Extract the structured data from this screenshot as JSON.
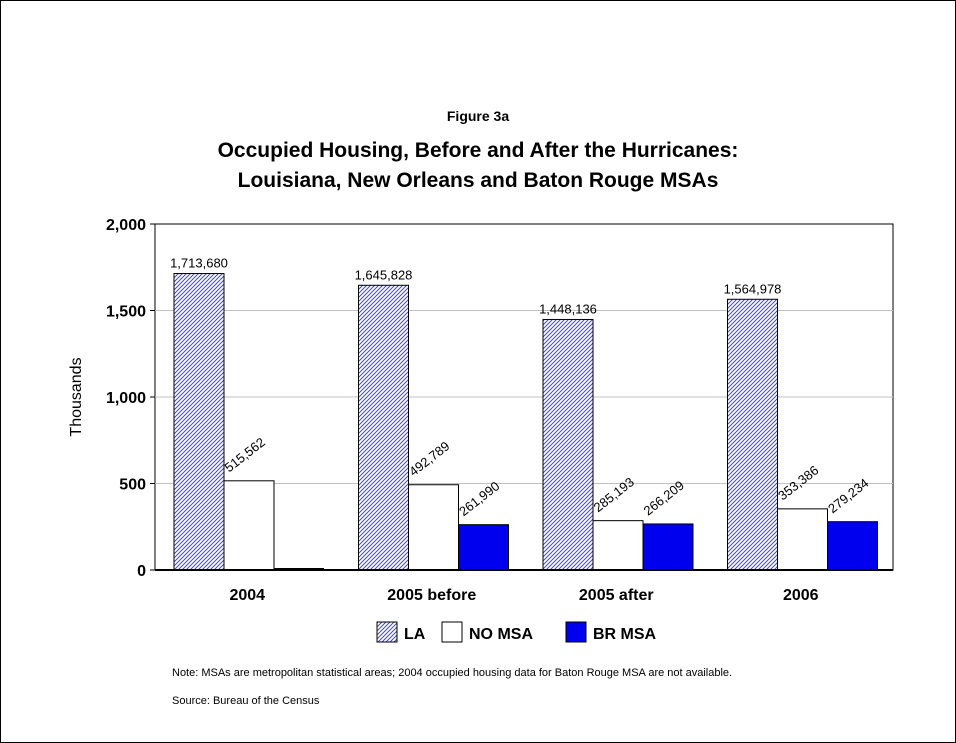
{
  "figure_label": "Figure 3a",
  "title_line1": "Occupied Housing, Before and After the Hurricanes:",
  "title_line2": "Louisiana, New Orleans and Baton Rouge MSAs",
  "note": "Note: MSAs are metropolitan statistical areas; 2004 occupied housing data for Baton Rouge MSA are not available.",
  "source": "Source: Bureau of the Census",
  "colors": {
    "la_stroke": "#4848c8",
    "br_fill": "#0000ee",
    "grid": "#c0c0c0"
  },
  "chart_data": {
    "type": "bar",
    "categories": [
      "2004",
      "2005 before",
      "2005 after",
      "2006"
    ],
    "ylabel": "Thousands",
    "ylim": [
      0,
      2000
    ],
    "yticks": [
      0,
      500,
      1000,
      1500,
      2000
    ],
    "ytick_labels": [
      "0",
      "500",
      "1,000",
      "1,500",
      "2,000"
    ],
    "grid": true,
    "legend_position": "bottom",
    "series": [
      {
        "name": "LA",
        "pattern": "diagonal-hatch",
        "values": [
          1713.68,
          1645.828,
          1448.136,
          1564.978
        ],
        "labels": [
          "1,713,680",
          "1,645,828",
          "1,448,136",
          "1,564,978"
        ]
      },
      {
        "name": "NO MSA",
        "pattern": "white",
        "values": [
          515.562,
          492.789,
          285.193,
          353.386
        ],
        "labels": [
          "515,562",
          "492,789",
          "285,193",
          "353,386"
        ]
      },
      {
        "name": "BR MSA",
        "pattern": "solid-blue",
        "values": [
          null,
          261.99,
          266.209,
          279.234
        ],
        "labels": [
          "",
          "261,990",
          "266,209",
          "279,234"
        ]
      }
    ]
  }
}
